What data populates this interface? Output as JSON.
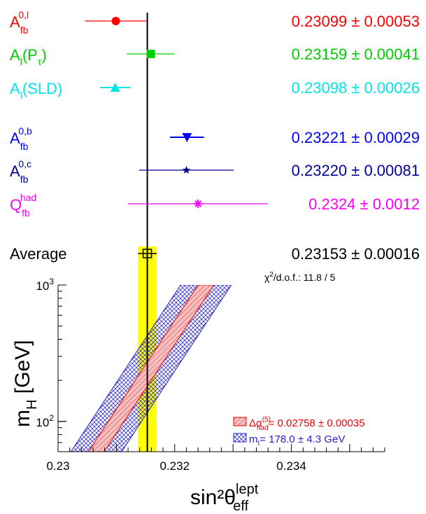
{
  "chart_data": {
    "type": "scatter",
    "xlabel": "sin²θeff",
    "xlabel_sup": "lept",
    "ylabel": "m",
    "ylabel_sub": "H",
    "ylabel_unit": "[GeV]",
    "xlim": [
      0.23,
      0.2356
    ],
    "x_ticks": [
      0.23,
      0.232,
      0.234
    ],
    "x_tick_labels": [
      "0.23",
      "0.232",
      "0.234"
    ],
    "ylim": [
      60,
      1000
    ],
    "y_scale": "log",
    "y_ticks": [
      {
        "value": 100,
        "base": "10",
        "exp": "2"
      },
      {
        "value": 1000,
        "base": "10",
        "exp": "3"
      }
    ],
    "measurements": [
      {
        "label": "A",
        "sub": "fb",
        "sup": "0,l",
        "value": 0.23099,
        "error": 0.00053,
        "value_text": "0.23099 ± 0.00053",
        "color": "#ff0000",
        "marker": "circle"
      },
      {
        "label": "A",
        "sub": "l",
        "suffix": "(P",
        "suffix_sub": "τ",
        "suffix_end": ")",
        "value": 0.23159,
        "error": 0.00041,
        "value_text": "0.23159 ± 0.00041",
        "color": "#00cc00",
        "marker": "square"
      },
      {
        "label": "A",
        "sub": "l",
        "suffix": "(SLD)",
        "value": 0.23098,
        "error": 0.00026,
        "value_text": "0.23098 ± 0.00026",
        "color": "#00e5e5",
        "marker": "triangle-up"
      },
      {
        "label": "A",
        "sub": "fb",
        "sup": "0,b",
        "value": 0.23221,
        "error": 0.00029,
        "value_text": "0.23221 ± 0.00029",
        "color": "#0000ff",
        "marker": "triangle-down"
      },
      {
        "label": "A",
        "sub": "fb",
        "sup": "0,c",
        "value": 0.2322,
        "error": 0.00081,
        "value_text": "0.23220 ± 0.00081",
        "color": "#000099",
        "marker": "star"
      },
      {
        "label": "Q",
        "sub": "fb",
        "sup": "had",
        "value": 0.2324,
        "error": 0.0012,
        "value_text": "0.2324 ± 0.0012",
        "color": "#ff00ff",
        "marker": "asterisk"
      }
    ],
    "average": {
      "label": "Average",
      "value": 0.23153,
      "error": 0.00016,
      "value_text": "0.23153 ± 0.00016",
      "color": "#000000",
      "band_color": "#ffff00"
    },
    "chi2": {
      "prefix": "χ",
      "sup": "2",
      "text": "/d.o.f.: 11.8 / 5"
    },
    "bands": [
      {
        "name_prefix": "Δα",
        "name_sup": "(5)",
        "name_sub": "had",
        "name_suffix": "= 0.02758 ± 0.00035",
        "color": "#ee0000",
        "fill": "#f4b0b0",
        "edges": [
          {
            "x": 0.23052,
            "y": 60
          },
          {
            "x": 0.2324,
            "y": 1000
          },
          {
            "x": 0.23079,
            "y": 60
          },
          {
            "x": 0.23267,
            "y": 1000
          }
        ]
      },
      {
        "name_prefix": "m",
        "name_sub": "t",
        "name_suffix": "= 178.0 ± 4.3 GeV",
        "color": "#2222cc",
        "edges": [
          {
            "x": 0.23022,
            "y": 60
          },
          {
            "x": 0.2321,
            "y": 1000
          },
          {
            "x": 0.23109,
            "y": 60
          },
          {
            "x": 0.23297,
            "y": 1000
          }
        ]
      }
    ]
  }
}
